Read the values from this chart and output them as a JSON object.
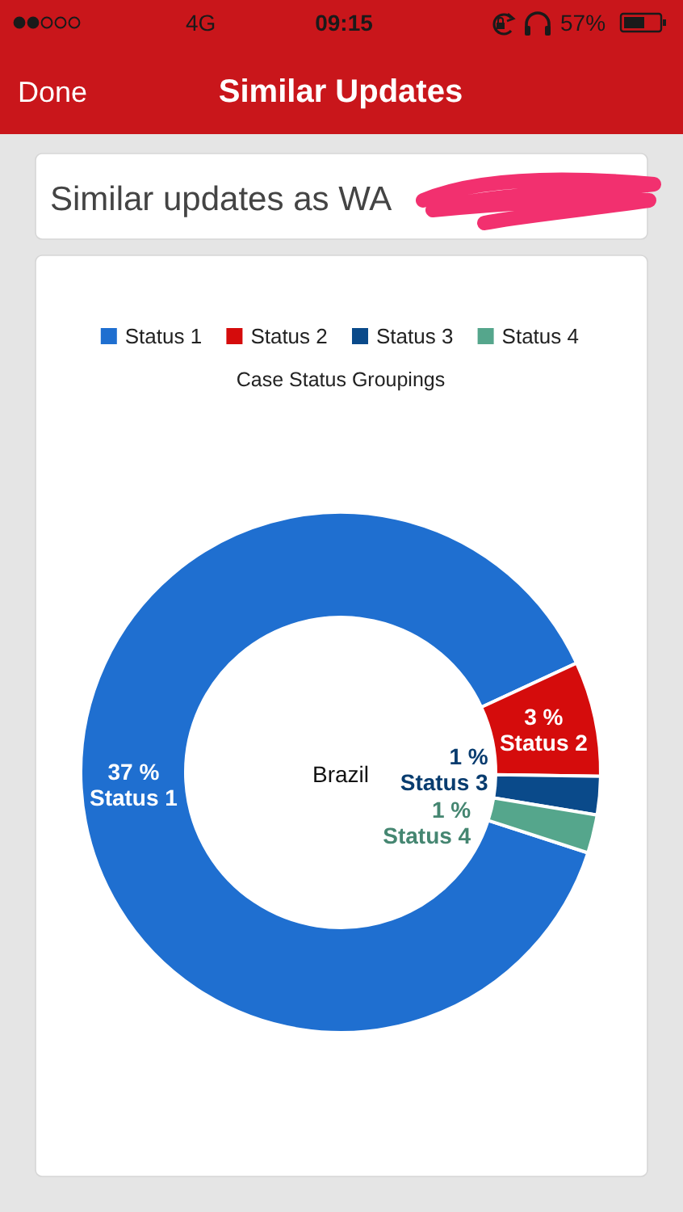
{
  "chart_data": {
    "type": "donut",
    "title": "Case Status Groupings",
    "categories": [
      "Status 1",
      "Status 2",
      "Status 3",
      "Status 4"
    ],
    "values": [
      37,
      3,
      1,
      1
    ],
    "colors": [
      "#1f6fd0",
      "#d50c0c",
      "#0a4a8a",
      "#55a68c"
    ],
    "value_labels": [
      "37 %",
      "3 %",
      "1 %",
      "1 %"
    ],
    "legend": "top",
    "annotations": [
      "Brazil",
      "Done",
      "Similar Updates",
      "Similar updates as WA",
      "09:15",
      "4G",
      "57%"
    ]
  }
}
